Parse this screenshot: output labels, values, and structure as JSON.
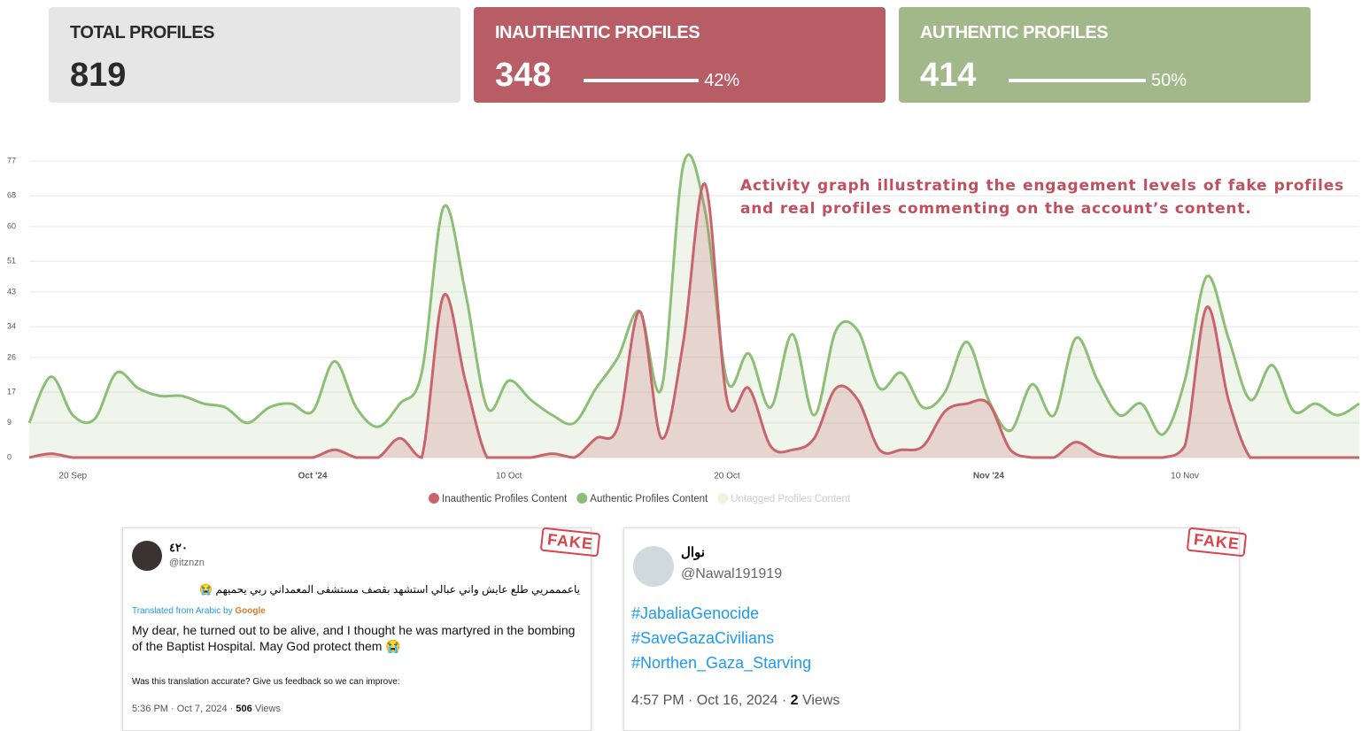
{
  "cards": [
    {
      "title": "TOTAL PROFILES",
      "value": 819
    },
    {
      "title": "INAUTHENTIC PROFILES",
      "value": 348,
      "share": 42,
      "share_label": "42%"
    },
    {
      "title": "AUTHENTIC PROFILES",
      "value": 414,
      "share": 50,
      "share_label": "50%"
    }
  ],
  "chart_data": {
    "type": "area",
    "annotation": "Activity graph illustrating the engagement levels of fake profiles and real profiles commenting on the account’s content.",
    "categories": [
      null,
      null,
      "20 Sep",
      null,
      null,
      null,
      null,
      null,
      null,
      null,
      null,
      null,
      null,
      "Oct '24",
      null,
      null,
      null,
      null,
      null,
      null,
      null,
      null,
      "10 Oct",
      null,
      null,
      null,
      null,
      null,
      null,
      null,
      null,
      null,
      "20 Oct",
      null,
      null,
      null,
      null,
      null,
      null,
      null,
      null,
      null,
      null,
      null,
      "Nov '24",
      null,
      null,
      null,
      null,
      null,
      null,
      null,
      null,
      "10 Nov",
      null,
      null,
      null,
      null,
      null,
      null,
      null,
      null
    ],
    "ylim": [
      0,
      77
    ],
    "yticks": [
      0,
      9,
      17,
      26,
      34,
      43,
      51,
      60,
      68,
      77
    ],
    "grid": true,
    "series": [
      {
        "name": "Inauthentic Profiles Content",
        "color": "#c8646e",
        "values": [
          0,
          1,
          0,
          0,
          0,
          0,
          0,
          0,
          0,
          0,
          0,
          0,
          0,
          0,
          2,
          0,
          0,
          5,
          0,
          42,
          20,
          0,
          0,
          0,
          1,
          0,
          5,
          8,
          38,
          5,
          30,
          71,
          15,
          18,
          3,
          2,
          5,
          18,
          15,
          2,
          2,
          3,
          12,
          14,
          14,
          2,
          0,
          0,
          4,
          1,
          0,
          0,
          0,
          3,
          39,
          15,
          0,
          0,
          0,
          0,
          0,
          0
        ]
      },
      {
        "name": "Authentic Profiles Content",
        "color": "#8cbf75",
        "values": [
          9,
          21,
          11,
          10,
          22,
          18,
          16,
          16,
          14,
          13,
          9,
          13,
          14,
          12,
          25,
          13,
          8,
          14,
          22,
          65,
          43,
          13,
          20,
          15,
          11,
          9,
          18,
          26,
          38,
          18,
          76,
          64,
          20,
          27,
          13,
          32,
          11,
          33,
          33,
          18,
          22,
          13,
          17,
          30,
          15,
          7,
          19,
          11,
          31,
          20,
          11,
          14,
          6,
          20,
          47,
          31,
          15,
          24,
          12,
          14,
          11,
          14
        ]
      },
      {
        "name": "Untagged Profiles Content",
        "color": "#eef3dc",
        "values": [
          null,
          null,
          null,
          null,
          null,
          null,
          null,
          null,
          null,
          null,
          null,
          null,
          null,
          null,
          null,
          null,
          null,
          null,
          null,
          null,
          null,
          null,
          null,
          null,
          null,
          null,
          null,
          null,
          null,
          null,
          null,
          null,
          null,
          null,
          null,
          null,
          null,
          null,
          null,
          null,
          null,
          null,
          null,
          null,
          null,
          null,
          null,
          null,
          null,
          null,
          null,
          null,
          null,
          null,
          null,
          null,
          null,
          null,
          null,
          null,
          null,
          null
        ]
      }
    ]
  },
  "tweets": [
    {
      "stamp": "FAKE",
      "name": "٤٢٠",
      "handle": "@itznzn",
      "text_ar": "ياعمممريي طلع عايش واني عبالي استشهد بقصف مستشفى المعمداني ربي يحميهم 😭",
      "translated": "Translated from Arabic by",
      "google": "Google",
      "text_en": "My dear, he turned out to be alive, and I thought he was martyred in the bombing of the Baptist Hospital. May God protect them 😭",
      "feedback": "Was this translation accurate? Give us feedback so we can improve:",
      "time": "5:36 PM · Oct 7, 2024 ·",
      "views": 506,
      "views_label": "Views"
    },
    {
      "stamp": "FAKE",
      "name": "نوال",
      "handle": "@Nawal191919",
      "hashtags": [
        "#JabaliaGenocide",
        "#SaveGazaCivilians",
        "#Northen_Gaza_Starving"
      ],
      "time": "4:57 PM · Oct 16, 2024 ·",
      "views": 2,
      "views_label": "Views"
    }
  ]
}
